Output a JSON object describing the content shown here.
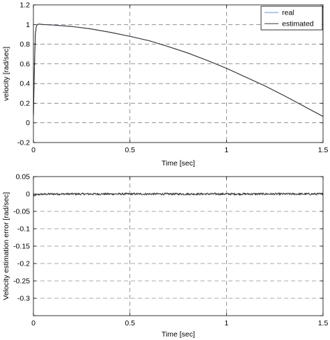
{
  "chart_data": [
    {
      "type": "line",
      "xlabel": "Time [sec]",
      "ylabel": "velocity [rad/sec]",
      "xlim": [
        0,
        1.5
      ],
      "ylim": [
        -0.2,
        1.2
      ],
      "xticks": [
        0,
        0.5,
        1,
        1.5
      ],
      "xtick_labels": [
        "0",
        "0.5",
        "1",
        "1.5"
      ],
      "yticks": [
        -0.2,
        0,
        0.2,
        0.4,
        0.6,
        0.8,
        1,
        1.2
      ],
      "ytick_labels": [
        "-0.2",
        "0",
        "0.2",
        "0.4",
        "0.6",
        "0.8",
        "1",
        "1.2"
      ],
      "grid": true,
      "legend_position": "top-right",
      "series": [
        {
          "name": "real",
          "color": "#6f8fd8",
          "x": [
            0,
            0.005,
            0.01,
            0.015,
            0.02,
            0.03,
            0.05,
            0.1,
            0.2,
            0.3,
            0.4,
            0.5,
            0.6,
            0.7,
            0.8,
            0.9,
            1.0,
            1.1,
            1.2,
            1.3,
            1.4,
            1.5
          ],
          "y": [
            0.08,
            0.55,
            0.9,
            0.98,
            1.0,
            1.005,
            1.0,
            0.995,
            0.98,
            0.955,
            0.92,
            0.88,
            0.835,
            0.775,
            0.71,
            0.635,
            0.555,
            0.465,
            0.375,
            0.275,
            0.17,
            0.065
          ]
        },
        {
          "name": "estimated",
          "color": "#333333",
          "x": [
            0,
            0.005,
            0.01,
            0.015,
            0.02,
            0.03,
            0.05,
            0.1,
            0.2,
            0.3,
            0.4,
            0.5,
            0.6,
            0.7,
            0.8,
            0.9,
            1.0,
            1.1,
            1.2,
            1.3,
            1.4,
            1.5
          ],
          "y": [
            0.08,
            0.55,
            0.9,
            0.98,
            1.0,
            1.005,
            1.0,
            0.995,
            0.98,
            0.955,
            0.92,
            0.88,
            0.835,
            0.775,
            0.71,
            0.635,
            0.555,
            0.465,
            0.375,
            0.275,
            0.17,
            0.065
          ]
        }
      ]
    },
    {
      "type": "line",
      "xlabel": "Time [sec]",
      "ylabel": "Velocity estimation error [rad/sec]",
      "xlim": [
        0,
        1.5
      ],
      "ylim": [
        -0.35,
        0.05
      ],
      "xticks": [
        0,
        0.5,
        1,
        1.5
      ],
      "xtick_labels": [
        "0",
        "0.5",
        "1",
        "1.5"
      ],
      "yticks": [
        -0.35,
        -0.3,
        -0.25,
        -0.2,
        -0.15,
        -0.1,
        -0.05,
        0,
        0.05
      ],
      "ytick_labels": [
        "",
        "-0.3",
        "-0.25",
        "-0.2",
        "-0.15",
        "-0.1",
        "-0.05",
        "0",
        "0.05"
      ],
      "grid": true,
      "series": [
        {
          "color": "#333333",
          "noise_amplitude": 0.003,
          "x": [
            0,
            0.005,
            0.01,
            0.03,
            0.1,
            0.5,
            1.0,
            1.5
          ],
          "y": [
            0,
            -0.008,
            -0.003,
            -0.001,
            0,
            0,
            0,
            0
          ]
        }
      ]
    }
  ]
}
